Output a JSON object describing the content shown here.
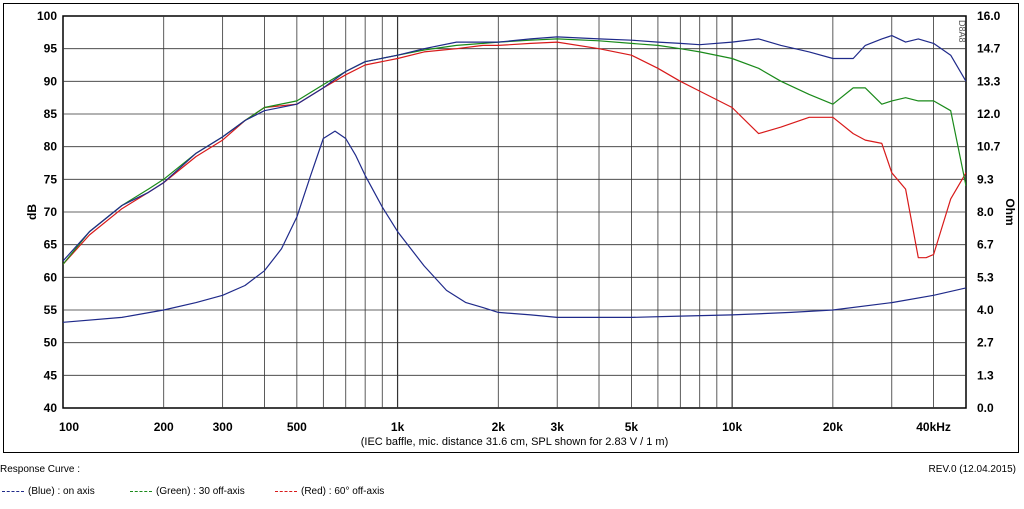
{
  "chart_data": {
    "type": "line",
    "title": "",
    "xlabel": "(IEC baffle, mic. distance 31.6 cm, SPL shown for 2.83 V / 1 m)",
    "ylabel": "dB",
    "y2label": "Ohm",
    "xscale": "log",
    "xlim": [
      100,
      50000
    ],
    "ylim": [
      40,
      100
    ],
    "y2lim": [
      0.0,
      16.0
    ],
    "grid": true,
    "x_tick_labels": [
      "100",
      "200",
      "300",
      "500",
      "1k",
      "2k",
      "3k",
      "5k",
      "10k",
      "20k",
      "40kHz"
    ],
    "y_tick_labels": [
      "100",
      "95",
      "90",
      "85",
      "80",
      "75",
      "70",
      "65",
      "60",
      "55",
      "50",
      "45",
      "40"
    ],
    "y2_tick_labels": [
      "16.0",
      "14.7",
      "13.3",
      "12.0",
      "10.7",
      "9.3",
      "8.0",
      "6.7",
      "5.3",
      "4.0",
      "2.7",
      "1.3",
      "0.0"
    ],
    "watermark": "D8A8",
    "series": [
      {
        "name": "(Blue) : on axis",
        "color": "#1f2a8a",
        "x": [
          100,
          120,
          150,
          180,
          200,
          250,
          300,
          350,
          400,
          500,
          600,
          700,
          800,
          1000,
          1200,
          1500,
          1800,
          2000,
          2500,
          3000,
          4000,
          5000,
          6000,
          7000,
          8000,
          10000,
          12000,
          14000,
          17000,
          20000,
          23000,
          25000,
          28000,
          30000,
          33000,
          36000,
          40000,
          45000,
          50000
        ],
        "values": [
          62.5,
          67,
          71,
          73,
          74.5,
          79,
          81.5,
          84,
          85.5,
          86.5,
          89,
          91.5,
          93,
          94,
          95,
          96,
          96,
          96,
          96.5,
          96.8,
          96.5,
          96.3,
          96,
          95.8,
          95.6,
          96,
          96.5,
          95.5,
          94.5,
          93.5,
          93.5,
          95.5,
          96.5,
          97,
          96,
          96.5,
          95.8,
          94,
          90
        ]
      },
      {
        "name": "(Green) : 30 off-axis",
        "color": "#1a8a1a",
        "x": [
          100,
          120,
          150,
          180,
          200,
          250,
          300,
          350,
          400,
          500,
          600,
          700,
          800,
          1000,
          1200,
          1500,
          1800,
          2000,
          2500,
          3000,
          4000,
          5000,
          6000,
          7000,
          8000,
          10000,
          12000,
          14000,
          17000,
          20000,
          23000,
          25000,
          28000,
          30000,
          33000,
          36000,
          40000,
          45000,
          50000
        ],
        "values": [
          62,
          67,
          71,
          73.5,
          75,
          79,
          81.5,
          84,
          86,
          87,
          89.5,
          91.5,
          93,
          94,
          94.8,
          95.5,
          95.8,
          96,
          96.3,
          96.5,
          96.2,
          95.8,
          95.5,
          95,
          94.5,
          93.5,
          92,
          90,
          88,
          86.5,
          89,
          89,
          86.5,
          87,
          87.5,
          87,
          87,
          85.5,
          74
        ]
      },
      {
        "name": "(Red) : 60° off-axis",
        "color": "#d81a1a",
        "x": [
          100,
          120,
          150,
          180,
          200,
          250,
          300,
          350,
          400,
          500,
          600,
          700,
          800,
          1000,
          1200,
          1500,
          1800,
          2000,
          2500,
          3000,
          4000,
          5000,
          6000,
          7000,
          8000,
          10000,
          12000,
          14000,
          17000,
          20000,
          23000,
          25000,
          28000,
          30000,
          33000,
          36000,
          38000,
          40000,
          45000,
          50000
        ],
        "values": [
          62,
          66.5,
          70.5,
          73,
          74.5,
          78.5,
          81,
          84,
          86,
          86.5,
          89,
          91,
          92.5,
          93.5,
          94.5,
          95,
          95.5,
          95.5,
          95.8,
          96,
          95,
          94,
          92,
          90,
          88.5,
          86,
          82,
          83,
          84.5,
          84.5,
          82,
          81,
          80.5,
          76,
          73.5,
          63,
          63,
          63.5,
          72,
          76
        ]
      },
      {
        "name": "Impedance (Ohm)",
        "axis": "right",
        "color": "#1f2a8a",
        "x": [
          100,
          150,
          200,
          250,
          300,
          350,
          400,
          450,
          500,
          550,
          600,
          650,
          700,
          750,
          800,
          900,
          1000,
          1200,
          1400,
          1600,
          1800,
          2000,
          2500,
          3000,
          4000,
          5000,
          7000,
          10000,
          15000,
          20000,
          30000,
          40000,
          50000
        ],
        "values": [
          3.5,
          3.7,
          4.0,
          4.3,
          4.6,
          5.0,
          5.6,
          6.5,
          7.8,
          9.5,
          11.0,
          11.3,
          11.0,
          10.3,
          9.5,
          8.2,
          7.2,
          5.8,
          4.8,
          4.3,
          4.1,
          3.9,
          3.8,
          3.7,
          3.7,
          3.7,
          3.75,
          3.8,
          3.9,
          4.0,
          4.3,
          4.6,
          4.9
        ]
      }
    ]
  },
  "footer": {
    "response_label": "Response Curve :",
    "revision": "REV.0 (12.04.2015)"
  },
  "legend": [
    {
      "label": "(Blue)  : on axis",
      "color": "#1f2a8a"
    },
    {
      "label": "(Green) : 30 off-axis",
      "color": "#1a8a1a"
    },
    {
      "label": "(Red) : 60° off-axis",
      "color": "#d81a1a"
    }
  ]
}
